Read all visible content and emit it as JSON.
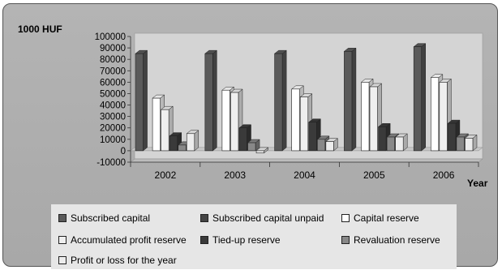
{
  "chart_data": {
    "type": "bar",
    "unit_label": "1000 HUF",
    "xlabel": "Year",
    "ylabel": "",
    "categories": [
      "2002",
      "2003",
      "2004",
      "2005",
      "2006"
    ],
    "ylim": [
      -10000,
      100000
    ],
    "yticks": [
      "100000",
      "90000",
      "80000",
      "70000",
      "60000",
      "50000",
      "40000",
      "30000",
      "20000",
      "10000",
      "0",
      "-10000"
    ],
    "series": [
      {
        "name": "Subscribed capital",
        "color": "#5a5a5a",
        "values": [
          85000,
          85000,
          85000,
          87000,
          91000
        ]
      },
      {
        "name": "Subscribed capital unpaid",
        "color": "#444444",
        "values": [
          0,
          0,
          0,
          0,
          0
        ]
      },
      {
        "name": "Capital reserve",
        "color": "#ffffff",
        "values": [
          46000,
          53000,
          54000,
          60000,
          64000
        ]
      },
      {
        "name": "Accumulated profit reserve",
        "color": "#efefef",
        "values": [
          36000,
          51000,
          47000,
          56000,
          60000
        ]
      },
      {
        "name": "Tied-up reserve",
        "color": "#3a3a3a",
        "values": [
          13000,
          20000,
          25000,
          21000,
          24000
        ]
      },
      {
        "name": "Revaluation reserve",
        "color": "#888888",
        "values": [
          5000,
          7000,
          10000,
          12000,
          12000
        ]
      },
      {
        "name": "Profit or loss for the year",
        "color": "#ececec",
        "values": [
          15000,
          -2000,
          8000,
          12000,
          11000
        ]
      }
    ],
    "grid": false,
    "legend_position": "bottom"
  }
}
